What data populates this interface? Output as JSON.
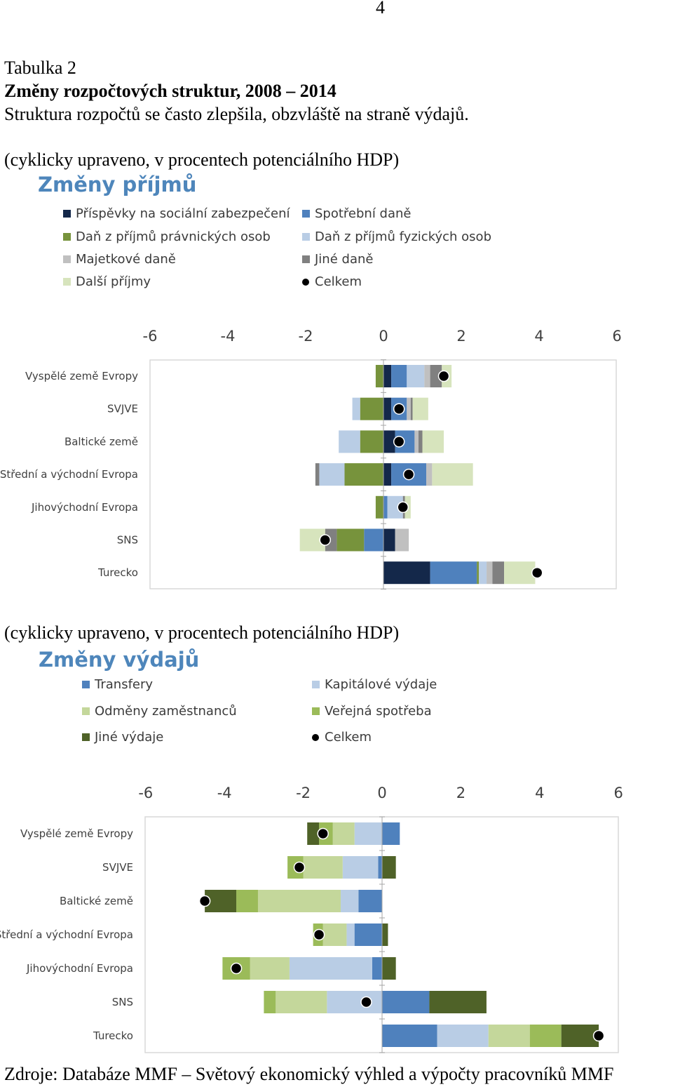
{
  "page_number": "4",
  "table_label": "Tabulka 2",
  "table_title": "Změny rozpočtových struktur, 2008 – 2014",
  "table_subtitle": "Struktura rozpočtů se často zlepšila, obzvláště na straně výdajů.",
  "source": "Zdroje: Databáze MMF – Světový ekonomický výhled a výpočty pracovníků MMF",
  "chart_data": [
    {
      "type": "bar",
      "stacked": true,
      "orientation": "horizontal",
      "unit_note": "(cyklicky upraveno, v procentech potenciálního HDP)",
      "title": "Změny příjmů",
      "categories": [
        "Vyspělé země Evropy",
        "SVJVE",
        "Baltické země",
        "Střední a východní Evropa",
        "Jihovýchodní Evropa",
        "SNS",
        "Turecko"
      ],
      "xlim": [
        -6,
        6
      ],
      "xticks": [
        "-6",
        "-4",
        "-2",
        "0",
        "2",
        "4",
        "6"
      ],
      "series": [
        {
          "name": "Příspěvky na sociální zabezpečení",
          "color": "#14284a",
          "values": [
            0.2,
            0.2,
            0.3,
            0.2,
            0.0,
            0.3,
            1.2
          ]
        },
        {
          "name": "Spotřební daně",
          "color": "#4f81bd",
          "values": [
            0.4,
            0.4,
            0.5,
            0.9,
            0.1,
            -0.5,
            1.2
          ]
        },
        {
          "name": "Daň z příjmů právnických osob",
          "color": "#77933c",
          "values": [
            -0.2,
            -0.6,
            -0.6,
            -1.0,
            -0.2,
            -0.7,
            0.05
          ]
        },
        {
          "name": "Daň z příjmů fyzických osob",
          "color": "#b9cde5",
          "values": [
            0.45,
            -0.2,
            -0.55,
            -0.65,
            0.4,
            0.0,
            0.2
          ]
        },
        {
          "name": "Majetkové daně",
          "color": "#c0c0c0",
          "values": [
            0.15,
            0.1,
            0.1,
            0.15,
            0.0,
            0.35,
            0.15
          ]
        },
        {
          "name": "Jiné daně",
          "color": "#808080",
          "values": [
            0.3,
            0.05,
            0.1,
            -0.1,
            0.05,
            -0.3,
            0.3
          ]
        },
        {
          "name": "Další příjmy",
          "color": "#d7e4bd",
          "values": [
            0.25,
            0.4,
            0.55,
            1.05,
            0.15,
            -0.65,
            0.8
          ]
        }
      ],
      "total": {
        "name": "Celkem",
        "values": [
          1.55,
          0.4,
          0.4,
          0.65,
          0.5,
          -1.5,
          3.95
        ]
      }
    },
    {
      "type": "bar",
      "stacked": true,
      "orientation": "horizontal",
      "unit_note": "(cyklicky upraveno, v procentech potenciálního HDP)",
      "title": "Změny výdajů",
      "categories": [
        "Vyspělé země Evropy",
        "SVJVE",
        "Baltické země",
        "Střední a východní Evropa",
        "Jihovýchodní Evropa",
        "SNS",
        "Turecko"
      ],
      "xlim": [
        -6,
        6
      ],
      "xticks": [
        "-6",
        "-4",
        "-2",
        "0",
        "2",
        "4",
        "6"
      ],
      "series": [
        {
          "name": "Transfery",
          "color": "#4f81bd",
          "values": [
            0.45,
            -0.1,
            -0.6,
            -0.7,
            -0.25,
            1.2,
            1.4
          ]
        },
        {
          "name": "Kapitálové výdaje",
          "color": "#b9cde5",
          "values": [
            -0.7,
            -0.9,
            -0.45,
            -0.2,
            -2.1,
            -1.4,
            1.3
          ]
        },
        {
          "name": "Odměny zaměstnanců",
          "color": "#c4d79b",
          "values": [
            -0.55,
            -1.0,
            -2.1,
            -0.6,
            -1.0,
            -1.3,
            1.05
          ]
        },
        {
          "name": "Veřejná spotřeba",
          "color": "#9bbb59",
          "values": [
            -0.35,
            -0.4,
            -0.55,
            -0.25,
            -0.7,
            -0.3,
            0.8
          ]
        },
        {
          "name": "Jiné výdaje",
          "color": "#4f6228",
          "values": [
            -0.3,
            0.35,
            -0.8,
            0.15,
            0.35,
            1.45,
            0.95
          ]
        }
      ],
      "total": {
        "name": "Celkem",
        "values": [
          -1.5,
          -2.1,
          -4.5,
          -1.6,
          -3.7,
          -0.4,
          5.5
        ]
      }
    }
  ]
}
